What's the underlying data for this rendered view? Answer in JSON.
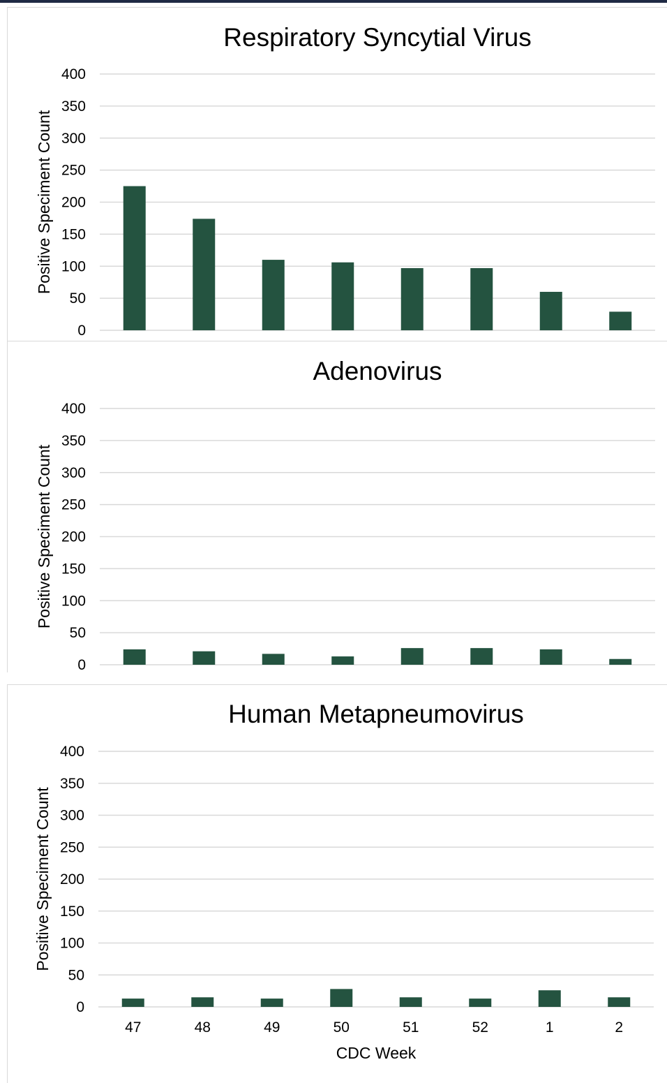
{
  "colors": {
    "bar": "#245340",
    "grid": "#d9d9d9",
    "frame_top": "#1f2a44"
  },
  "chart_data": [
    {
      "type": "bar",
      "title": "Respiratory Syncytial Virus",
      "ylabel": "Positive Speciment Count",
      "xlabel": "",
      "categories": [
        "47",
        "48",
        "49",
        "50",
        "51",
        "52",
        "1",
        "2"
      ],
      "values": [
        225,
        174,
        110,
        106,
        97,
        97,
        60,
        29
      ],
      "ylim": [
        0,
        400
      ],
      "yticks": [
        0,
        50,
        100,
        150,
        200,
        250,
        300,
        350,
        400
      ],
      "show_category_labels": false,
      "grid": true
    },
    {
      "type": "bar",
      "title": "Adenovirus",
      "ylabel": "Positive Speciment Count",
      "xlabel": "",
      "categories": [
        "47",
        "48",
        "49",
        "50",
        "51",
        "52",
        "1",
        "2"
      ],
      "values": [
        24,
        21,
        17,
        13,
        26,
        26,
        24,
        9
      ],
      "ylim": [
        0,
        400
      ],
      "yticks": [
        0,
        50,
        100,
        150,
        200,
        250,
        300,
        350,
        400
      ],
      "show_category_labels": false,
      "grid": true
    },
    {
      "type": "bar",
      "title": "Human Metapneumovirus",
      "ylabel": "Positive Speciment Count",
      "xlabel": "CDC Week",
      "categories": [
        "47",
        "48",
        "49",
        "50",
        "51",
        "52",
        "1",
        "2"
      ],
      "values": [
        13,
        15,
        13,
        28,
        15,
        13,
        26,
        15
      ],
      "ylim": [
        0,
        400
      ],
      "yticks": [
        0,
        50,
        100,
        150,
        200,
        250,
        300,
        350,
        400
      ],
      "show_category_labels": true,
      "grid": true
    }
  ]
}
